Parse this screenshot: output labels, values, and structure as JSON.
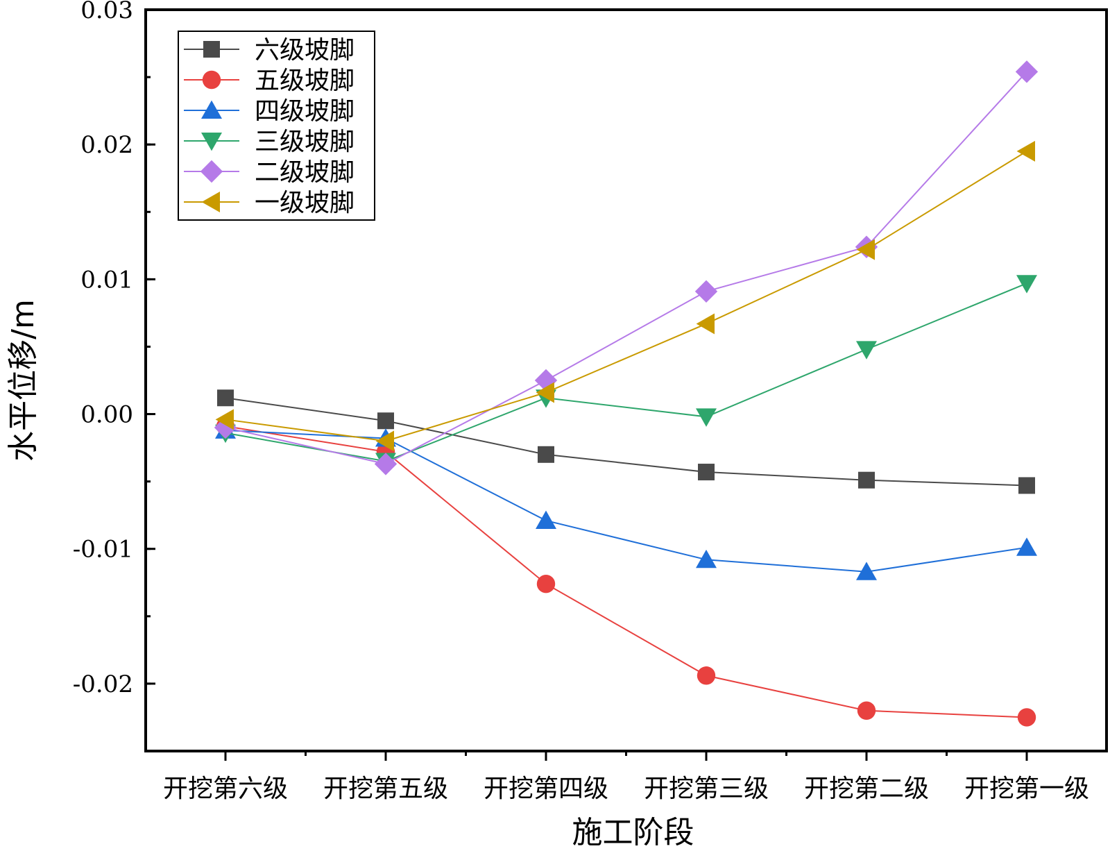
{
  "chart_data": {
    "type": "line",
    "title": "",
    "xlabel": "施工阶段",
    "ylabel": "水平位移/m",
    "categories": [
      "开挖第六级",
      "开挖第五级",
      "开挖第四级",
      "开挖第三级",
      "开挖第二级",
      "开挖第一级"
    ],
    "ylim": [
      -0.025,
      0.03
    ],
    "yticks": [
      0.03,
      0.02,
      0.01,
      0.0,
      -0.01,
      -0.02
    ],
    "ytick_labels": [
      "0.03",
      "0.02",
      "0.01",
      "0.00",
      "-0.01",
      "-0.02"
    ],
    "legend_position": "top-left",
    "grid": false,
    "series": [
      {
        "name": "六级坡脚",
        "marker": "square",
        "color": "#4a4a4a",
        "values": [
          0.0012,
          -0.0005,
          -0.003,
          -0.0043,
          -0.0049,
          -0.0053
        ]
      },
      {
        "name": "五级坡脚",
        "marker": "circle",
        "color": "#e8413f",
        "values": [
          -0.0009,
          -0.0028,
          -0.0126,
          -0.0194,
          -0.022,
          -0.0225
        ]
      },
      {
        "name": "四级坡脚",
        "marker": "triangle-up",
        "color": "#1f6fd8",
        "values": [
          -0.0012,
          -0.0018,
          -0.0079,
          -0.0108,
          -0.0117,
          -0.0099
        ]
      },
      {
        "name": "三级坡脚",
        "marker": "triangle-down",
        "color": "#2ea66c",
        "values": [
          -0.0014,
          -0.0035,
          0.0012,
          -0.0002,
          0.0048,
          0.0097
        ]
      },
      {
        "name": "二级坡脚",
        "marker": "diamond",
        "color": "#b57ae8",
        "values": [
          -0.001,
          -0.0037,
          0.0025,
          0.0091,
          0.0124,
          0.0254
        ]
      },
      {
        "name": "一级坡脚",
        "marker": "triangle-left",
        "color": "#c99a00",
        "values": [
          -0.0004,
          -0.002,
          0.0016,
          0.0067,
          0.0122,
          0.0195
        ]
      }
    ]
  }
}
